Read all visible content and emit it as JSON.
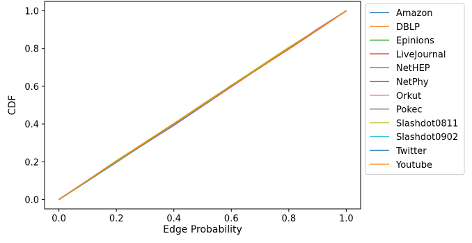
{
  "chart_data": {
    "type": "line",
    "title": "",
    "xlabel": "Edge Probability",
    "ylabel": "CDF",
    "xlim": [
      -0.05,
      1.05
    ],
    "ylim": [
      -0.05,
      1.05
    ],
    "xticks": [
      0.0,
      0.2,
      0.4,
      0.6,
      0.8,
      1.0
    ],
    "yticks": [
      0.0,
      0.2,
      0.4,
      0.6,
      0.8,
      1.0
    ],
    "xtick_labels": [
      "0.0",
      "0.2",
      "0.4",
      "0.6",
      "0.8",
      "1.0"
    ],
    "ytick_labels": [
      "0.0",
      "0.2",
      "0.4",
      "0.6",
      "0.8",
      "1.0"
    ],
    "grid": false,
    "legend": "outside-right",
    "series": [
      {
        "name": "Amazon",
        "color": "#1f77b4",
        "x": [
          0,
          0.1,
          0.2,
          0.3,
          0.4,
          0.5,
          0.6,
          0.7,
          0.8,
          0.9,
          1.0
        ],
        "y": [
          0,
          0.1,
          0.2,
          0.3,
          0.4,
          0.5,
          0.6,
          0.7,
          0.8,
          0.9,
          1.0
        ]
      },
      {
        "name": "DBLP",
        "color": "#ff7f0e",
        "x": [
          0,
          0.1,
          0.2,
          0.3,
          0.4,
          0.5,
          0.6,
          0.7,
          0.8,
          0.9,
          1.0
        ],
        "y": [
          0,
          0.102,
          0.205,
          0.304,
          0.403,
          0.503,
          0.603,
          0.703,
          0.802,
          0.901,
          1.0
        ]
      },
      {
        "name": "Epinions",
        "color": "#2ca02c",
        "x": [
          0,
          0.1,
          0.2,
          0.3,
          0.4,
          0.5,
          0.6,
          0.7,
          0.8,
          0.9,
          1.0
        ],
        "y": [
          0,
          0.098,
          0.197,
          0.298,
          0.398,
          0.502,
          0.605,
          0.698,
          0.803,
          0.9,
          1.0
        ]
      },
      {
        "name": "LiveJournal",
        "color": "#d62728",
        "x": [
          0,
          0.1,
          0.2,
          0.3,
          0.4,
          0.5,
          0.6,
          0.7,
          0.8,
          0.9,
          1.0
        ],
        "y": [
          0,
          0.1,
          0.199,
          0.297,
          0.395,
          0.497,
          0.598,
          0.699,
          0.797,
          0.898,
          1.0
        ]
      },
      {
        "name": "NetHEP",
        "color": "#9467bd",
        "x": [
          0,
          0.1,
          0.2,
          0.3,
          0.4,
          0.5,
          0.6,
          0.7,
          0.8,
          0.9,
          1.0
        ],
        "y": [
          0,
          0.099,
          0.198,
          0.296,
          0.392,
          0.495,
          0.597,
          0.7,
          0.799,
          0.902,
          1.0
        ]
      },
      {
        "name": "NetPhy",
        "color": "#8c564b",
        "x": [
          0,
          0.1,
          0.2,
          0.3,
          0.4,
          0.5,
          0.6,
          0.7,
          0.8,
          0.9,
          1.0
        ],
        "y": [
          0,
          0.101,
          0.201,
          0.301,
          0.401,
          0.501,
          0.601,
          0.701,
          0.801,
          0.9,
          1.0
        ]
      },
      {
        "name": "Orkut",
        "color": "#e377c2",
        "x": [
          0,
          0.1,
          0.2,
          0.3,
          0.4,
          0.5,
          0.6,
          0.7,
          0.8,
          0.9,
          1.0
        ],
        "y": [
          0,
          0.1,
          0.2,
          0.301,
          0.399,
          0.5,
          0.6,
          0.7,
          0.8,
          0.905,
          1.0
        ]
      },
      {
        "name": "Pokec",
        "color": "#7f7f7f",
        "x": [
          0,
          0.1,
          0.2,
          0.3,
          0.4,
          0.5,
          0.6,
          0.7,
          0.8,
          0.9,
          1.0
        ],
        "y": [
          0,
          0.1,
          0.2,
          0.3,
          0.4,
          0.5,
          0.6,
          0.7,
          0.8,
          0.9,
          1.0
        ]
      },
      {
        "name": "Slashdot0811",
        "color": "#bcbd22",
        "x": [
          0,
          0.1,
          0.2,
          0.3,
          0.4,
          0.5,
          0.6,
          0.7,
          0.8,
          0.9,
          1.0
        ],
        "y": [
          0,
          0.101,
          0.203,
          0.303,
          0.402,
          0.505,
          0.605,
          0.706,
          0.807,
          0.902,
          1.0
        ]
      },
      {
        "name": "Slashdot0902",
        "color": "#17becf",
        "x": [
          0,
          0.1,
          0.2,
          0.3,
          0.4,
          0.5,
          0.6,
          0.7,
          0.8,
          0.9,
          1.0
        ],
        "y": [
          0,
          0.097,
          0.196,
          0.297,
          0.397,
          0.498,
          0.6,
          0.7,
          0.8,
          0.901,
          1.0
        ]
      },
      {
        "name": "Twitter",
        "color": "#1f77b4",
        "x": [
          0,
          0.1,
          0.2,
          0.3,
          0.4,
          0.5,
          0.6,
          0.7,
          0.8,
          0.9,
          1.0
        ],
        "y": [
          0,
          0.1,
          0.201,
          0.299,
          0.4,
          0.499,
          0.601,
          0.699,
          0.8,
          0.9,
          1.0
        ]
      },
      {
        "name": "Youtube",
        "color": "#ff7f0e",
        "x": [
          0,
          0.1,
          0.2,
          0.3,
          0.4,
          0.5,
          0.6,
          0.7,
          0.8,
          0.9,
          1.0
        ],
        "y": [
          0,
          0.1,
          0.2,
          0.3,
          0.4,
          0.5,
          0.6,
          0.7,
          0.8,
          0.9,
          1.0
        ]
      }
    ]
  }
}
